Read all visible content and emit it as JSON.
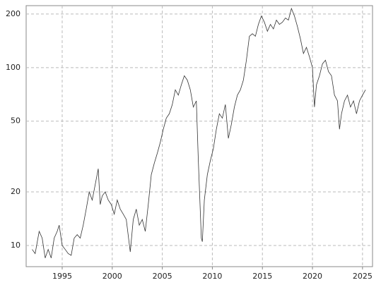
{
  "chart_data": {
    "type": "line",
    "x": [
      1992.0,
      1992.3,
      1992.7,
      1993.0,
      1993.3,
      1993.6,
      1993.9,
      1994.2,
      1994.5,
      1994.7,
      1995.0,
      1995.3,
      1995.6,
      1995.9,
      1996.2,
      1996.5,
      1996.8,
      1997.1,
      1997.4,
      1997.7,
      1998.0,
      1998.3,
      1998.6,
      1998.8,
      1999.0,
      1999.3,
      1999.6,
      1999.9,
      2000.2,
      2000.5,
      2000.8,
      2001.1,
      2001.4,
      2001.8,
      2002.1,
      2002.4,
      2002.7,
      2003.0,
      2003.3,
      2003.6,
      2003.9,
      2004.2,
      2004.5,
      2004.8,
      2005.1,
      2005.4,
      2005.7,
      2006.0,
      2006.3,
      2006.6,
      2006.9,
      2007.2,
      2007.5,
      2007.8,
      2008.1,
      2008.4,
      2008.6,
      2008.9,
      2009.0,
      2009.2,
      2009.5,
      2009.8,
      2010.1,
      2010.4,
      2010.7,
      2011.0,
      2011.3,
      2011.6,
      2011.9,
      2012.2,
      2012.5,
      2012.8,
      2013.1,
      2013.4,
      2013.7,
      2014.0,
      2014.3,
      2014.6,
      2014.9,
      2015.2,
      2015.5,
      2015.8,
      2016.1,
      2016.4,
      2016.7,
      2017.0,
      2017.3,
      2017.6,
      2017.9,
      2018.2,
      2018.5,
      2018.8,
      2019.1,
      2019.4,
      2019.7,
      2020.0,
      2020.2,
      2020.4,
      2020.7,
      2021.0,
      2021.3,
      2021.6,
      2021.9,
      2022.2,
      2022.5,
      2022.7,
      2022.9,
      2023.2,
      2023.5,
      2023.8,
      2024.1,
      2024.4,
      2024.7,
      2025.0,
      2025.3
    ],
    "series": [
      {
        "color": "#333333",
        "values": [
          9.5,
          9,
          12,
          11,
          8.5,
          9.5,
          8.5,
          11,
          12,
          13,
          10,
          9.5,
          9,
          8.8,
          11,
          11.5,
          11,
          13,
          16,
          20,
          18,
          22,
          27,
          17,
          19,
          20,
          18,
          17,
          15,
          18,
          16,
          15,
          14,
          9.2,
          14,
          16,
          13,
          14,
          12,
          17,
          25,
          29,
          33,
          38,
          45,
          52,
          55,
          62,
          75,
          70,
          80,
          90,
          85,
          75,
          60,
          65,
          30,
          11,
          10.5,
          18,
          25,
          30,
          35,
          45,
          55,
          52,
          62,
          40,
          48,
          60,
          70,
          75,
          85,
          110,
          150,
          155,
          150,
          175,
          195,
          180,
          160,
          175,
          165,
          185,
          175,
          180,
          190,
          185,
          215,
          195,
          170,
          145,
          120,
          130,
          115,
          100,
          60,
          80,
          90,
          105,
          110,
          95,
          90,
          70,
          65,
          45,
          55,
          65,
          70,
          60,
          65,
          55,
          65,
          70,
          75
        ]
      }
    ],
    "xlim": [
      1991.4,
      2026.0
    ],
    "xticks": [
      1995,
      2000,
      2005,
      2010,
      2015,
      2020,
      2025
    ],
    "ylim": [
      7.6,
      223
    ],
    "yticks": [
      10,
      20,
      50,
      100,
      200
    ],
    "log_scale": "y",
    "grid": true
  }
}
